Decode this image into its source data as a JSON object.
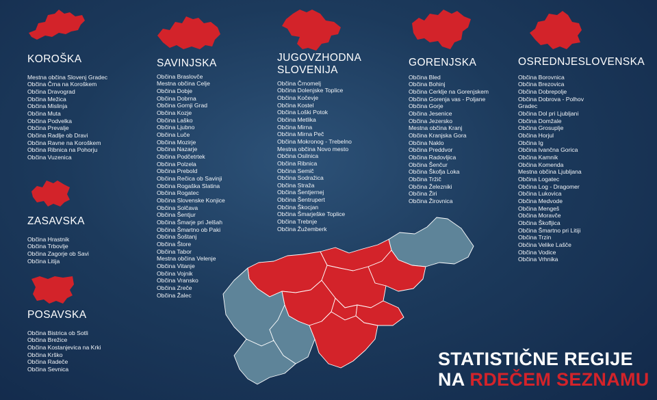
{
  "colors": {
    "red": "#d3232a",
    "gray": "#5e8499",
    "background": "#1c3a5c",
    "text": "#ffffff"
  },
  "koroska": {
    "title": "KOROŠKA",
    "icon": "koroska-region-icon",
    "items": [
      "Mestna občina Slovenj Gradec",
      "Občina Črna na Koroškem",
      "Občina Dravograd",
      "Občina Mežica",
      "Občina Mislinja",
      "Občina Muta",
      "Občina Podvelka",
      "Občina Prevalje",
      "Občina Radlje ob Dravi",
      "Občina Ravne na Koroškem",
      "Občina Ribnica na Pohorju",
      "Občina Vuzenica"
    ]
  },
  "zasavska": {
    "title": "ZASAVSKA",
    "icon": "zasavska-region-icon",
    "items": [
      "Občina Hrastnik",
      "Občina Trbovlje",
      "Občina Zagorje ob Savi",
      "Občina Litija"
    ]
  },
  "posavska": {
    "title": "POSAVSKA",
    "icon": "posavska-region-icon",
    "items": [
      "Občina Bistrica ob Sotli",
      "Občina Brežice",
      "Občina Kostanjevica na Krki",
      "Občina Krško",
      "Občina Radeče",
      "Občina Sevnica"
    ]
  },
  "savinjska": {
    "title": "SAVINJSKA",
    "icon": "savinjska-region-icon",
    "items": [
      "Občina Braslovče",
      "Mestna občina Celje",
      "Občina Dobje",
      "Občina Dobrna",
      "Občina Gornji Grad",
      "Občina Kozje",
      "Občina Laško",
      "Občina Ljubno",
      "Občina Luče",
      "Občina Mozirje",
      "Občina Nazarje",
      "Občina Podčetrtek",
      "Občina Polzela",
      "Občina Prebold",
      "Občina Rečica ob Savinji",
      "Občina Rogaška Slatina",
      "Občina Rogatec",
      "Občina Slovenske Konjice",
      "Občina Solčava",
      "Občina Šentjur",
      "Občina Šmarje pri Jelšah",
      "Občina Šmartno ob Paki",
      "Občina Šoštanj",
      "Občina Štore",
      "Občina Tabor",
      "Mestna občina Velenje",
      "Občina Vitanje",
      "Občina Vojnik",
      "Občina Vransko",
      "Občina Zreče",
      "Občina Žalec"
    ]
  },
  "jugovzhodna": {
    "title_line1": "JUGOVZHODNA",
    "title_line2": "SLOVENIJA",
    "icon": "jugovzhodna-region-icon",
    "items": [
      "Občina Črnomelj",
      "Občina Dolenjske Toplice",
      "Občina Kočevje",
      "Občina Kostel",
      "Občina Loški Potok",
      "Občina Metlika",
      "Občina Mirna",
      "Občina Mirna Peč",
      "Občina Mokronog - Trebelno",
      "Mestna občina Novo mesto",
      "Občina Osilnica",
      "Občina Ribnica",
      "Občina Semič",
      "Občina Sodražica",
      "Občina Straža",
      "Občina Šentjernej",
      "Občina Šentrupert",
      "Občina Škocjan",
      "Občina Šmarješke Toplice",
      "Občina Trebnje",
      "Občina Žužemberk"
    ]
  },
  "gorenjska": {
    "title": "GORENJSKA",
    "icon": "gorenjska-region-icon",
    "items": [
      "Občina Bled",
      "Občina Bohinj",
      "Občina Cerklje na Gorenjskem",
      "Občina Gorenja vas - Poljane",
      "Občina Gorje",
      "Občina Jesenice",
      "Občina Jezersko",
      "Mestna občina Kranj",
      "Občina Kranjska Gora",
      "Občina Naklo",
      "Občina Preddvor",
      "Občina Radovljica",
      "Občina Šenčur",
      "Občina Škofja Loka",
      "Občina Tržič",
      "Občina Železniki",
      "Občina Žiri",
      "Občina Žirovnica"
    ]
  },
  "osrednjeslovenska": {
    "title": "OSREDNJESLOVENSKA",
    "icon": "osrednjeslovenska-region-icon",
    "items": [
      "Občina Borovnica",
      "Občina Brezovica",
      "Občina Dobrepolje",
      "Občina Dobrova - Polhov",
      "Gradec",
      "Občina Dol pri Ljubljani",
      "Občina Domžale",
      "Občina Grosuplje",
      "Občina Horjul",
      "Občina Ig",
      "Občina Ivančna Gorica",
      "Občina Kamnik",
      "Občina Komenda",
      "Mestna občina Ljubljana",
      "Občina Logatec",
      "Občina Log - Dragomer",
      "Občina Lukovica",
      "Občina Medvode",
      "Občina Mengeš",
      "Občina Moravče",
      "Občina Škofljica",
      "Občina Šmartno pri Litiji",
      "Občina Trzin",
      "Občina Velike Lašče",
      "Občina Vodice",
      "Občina Vrhnika"
    ]
  },
  "headline": {
    "line1": "STATISTIČNE REGIJE",
    "line2_prefix": "NA ",
    "line2_highlight": "RDEČEM SEZNAMU"
  }
}
